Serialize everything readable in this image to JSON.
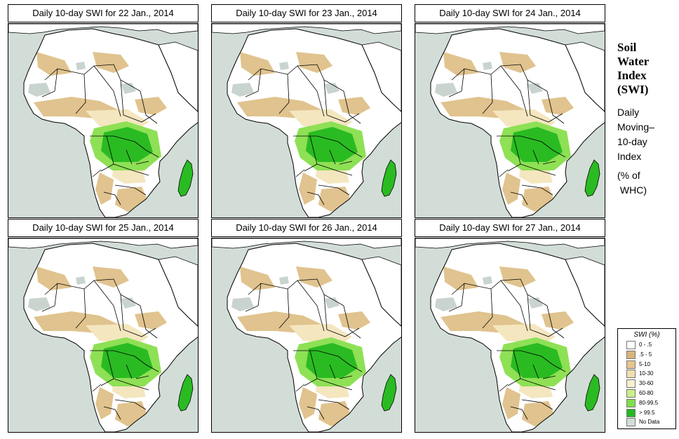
{
  "panels": [
    {
      "title": "Daily 10-day SWI for  22 Jan., 2014",
      "variant": 0
    },
    {
      "title": "Daily 10-day SWI for  23 Jan., 2014",
      "variant": 1
    },
    {
      "title": "Daily 10-day SWI for  24 Jan., 2014",
      "variant": 2
    },
    {
      "title": "Daily 10-day SWI for  25 Jan., 2014",
      "variant": 3
    },
    {
      "title": "Daily 10-day SWI for  26 Jan., 2014",
      "variant": 4
    },
    {
      "title": "Daily 10-day SWI for  27 Jan., 2014",
      "variant": 5
    }
  ],
  "side": {
    "title_lines": [
      "Soil",
      "Water",
      "Index",
      "(SWI)"
    ],
    "desc_lines": [
      "Daily",
      "Moving–",
      "10-day",
      "Index"
    ],
    "unit_lines": [
      "(% of",
      " WHC)"
    ]
  },
  "legend": {
    "title": "SWI (%)",
    "items": [
      {
        "label": "0 - .5",
        "color": "#ffffff"
      },
      {
        "label": ".5 - 5",
        "color": "#d9b47a"
      },
      {
        "label": "5-10",
        "color": "#e6c48f"
      },
      {
        "label": "10-30",
        "color": "#f2deb0"
      },
      {
        "label": "30-60",
        "color": "#f7f0cf"
      },
      {
        "label": "60-80",
        "color": "#c9f08a"
      },
      {
        "label": "80-99.5",
        "color": "#7fe04a"
      },
      {
        "label": "> 99.5",
        "color": "#22b81e"
      },
      {
        "label": "No Data",
        "color": "#d3ddd8"
      }
    ]
  },
  "colors": {
    "ocean": "#d3ddd8",
    "land": "#ffffff",
    "dry": "#e0c38e",
    "moderate": "#f4e6bf",
    "wet": "#8ee055",
    "saturated": "#2abb22",
    "nodata": "#c9d4cf",
    "border": "#000000"
  }
}
